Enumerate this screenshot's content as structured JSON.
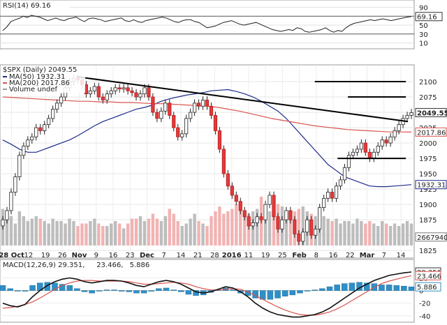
{
  "chart_data": [
    {
      "type": "line",
      "panel": "rsi",
      "title": "RSI(14) 69.16",
      "y_ticks": [
        "90",
        "70",
        "50",
        "30",
        "10"
      ],
      "ylim": [
        0,
        100
      ],
      "last_value": 69.16,
      "last_label": "69.16",
      "series": [
        {
          "name": "RSI(14)",
          "color": "#222222",
          "values": [
            38,
            46,
            58,
            62,
            65,
            70,
            67,
            72,
            70,
            68,
            64,
            60,
            63,
            66,
            62,
            60,
            64,
            66,
            68,
            62,
            58,
            64,
            66,
            64,
            62,
            58,
            60,
            62,
            64,
            66,
            60,
            58,
            62,
            58,
            56,
            60,
            62,
            64,
            66,
            68,
            66,
            62,
            58,
            56,
            60,
            62,
            62,
            58,
            56,
            50,
            44,
            46,
            48,
            52,
            56,
            58,
            60,
            56,
            52,
            50,
            52,
            54,
            56,
            52,
            48,
            44,
            40,
            38,
            36,
            38,
            40,
            38,
            44,
            42,
            36,
            34,
            36,
            38,
            40,
            44,
            38,
            34,
            38,
            36,
            44,
            50,
            54,
            56,
            58,
            60,
            62,
            60,
            62,
            64,
            62,
            60,
            62,
            64,
            66,
            68,
            69.16
          ]
        }
      ]
    },
    {
      "type": "candlestick",
      "panel": "price",
      "title": "$SPX (Daily) 2049.55",
      "legend": [
        {
          "name": "MA(50) 1932.31",
          "color": "#1d2a8a"
        },
        {
          "name": "MA(200) 2017.86",
          "color": "#d9534f"
        },
        {
          "name": "Volume undef",
          "color": "#999999"
        }
      ],
      "y_ticks": [
        "2100",
        "2075",
        "2050",
        "2025",
        "2000",
        "1975",
        "1950",
        "1925",
        "1900",
        "1875",
        "1850",
        "1825"
      ],
      "ylim": [
        1815,
        2125
      ],
      "x_ticks": [
        "28 Oct",
        "12",
        "19",
        "26",
        "Nov",
        "9",
        "16",
        "23",
        "Dec",
        "7",
        "14",
        "21",
        "28",
        "2016",
        "11",
        "19",
        "25",
        "Feb",
        "8",
        "16",
        "22",
        "Mar",
        "7",
        "14"
      ],
      "price_labels": [
        {
          "label": "2049.55",
          "value": 2049.55,
          "style": "bold"
        },
        {
          "label": "2017.86",
          "value": 2017.86,
          "style": "ma200"
        },
        {
          "label": "1932.31",
          "value": 1932.31,
          "style": "ma50"
        },
        {
          "label": "2667940",
          "value": 1847,
          "style": "plain"
        }
      ],
      "close": [
        1875,
        1890,
        1920,
        1945,
        1980,
        1995,
        2005,
        2010,
        2025,
        2020,
        2030,
        2040,
        2055,
        2065,
        2075,
        2090,
        2100,
        2105,
        2103,
        2095,
        2080,
        2085,
        2092,
        2075,
        2070,
        2080,
        2085,
        2090,
        2088,
        2090,
        2085,
        2082,
        2075,
        2080,
        2090,
        2075,
        2050,
        2040,
        2052,
        2065,
        2045,
        2025,
        2010,
        2015,
        2040,
        2050,
        2065,
        2060,
        2070,
        2060,
        2045,
        2020,
        1990,
        1950,
        1930,
        1915,
        1905,
        1890,
        1880,
        1865,
        1870,
        1880,
        1875,
        1900,
        1915,
        1880,
        1860,
        1875,
        1890,
        1875,
        1852,
        1840,
        1855,
        1875,
        1850,
        1860,
        1895,
        1910,
        1920,
        1910,
        1930,
        1940,
        1960,
        1980,
        1985,
        1990,
        2000,
        1985,
        1975,
        1985,
        1995,
        2005,
        2000,
        2010,
        2020,
        2030,
        2040,
        2045,
        2049.55
      ],
      "series": [
        {
          "name": "MA(50)",
          "color": "#1d2a8a",
          "values": [
            2005,
            1998,
            1990,
            1985,
            1985,
            1990,
            1995,
            2000,
            2005,
            2012,
            2020,
            2028,
            2035,
            2040,
            2045,
            2050,
            2055,
            2058,
            2062,
            2068,
            2072,
            2075,
            2078,
            2080,
            2082,
            2085,
            2086,
            2087,
            2084,
            2080,
            2075,
            2068,
            2060,
            2052,
            2040,
            2025,
            2010,
            1995,
            1980,
            1965,
            1955,
            1945,
            1940,
            1935,
            1930,
            1929,
            1929,
            1930,
            1931,
            1932.31
          ]
        },
        {
          "name": "MA(200)",
          "color": "#d9534f",
          "values": [
            2075,
            2074,
            2073,
            2072,
            2071,
            2070,
            2069,
            2068,
            2068,
            2067,
            2067,
            2066,
            2066,
            2065,
            2064,
            2064,
            2063,
            2062,
            2061,
            2060,
            2058,
            2055,
            2052,
            2048,
            2044,
            2040,
            2037,
            2034,
            2031,
            2028,
            2026,
            2024,
            2022,
            2021,
            2020,
            2019,
            2018,
            2018,
            2017.86
          ]
        }
      ],
      "volume_relative": [
        0.75,
        0.55,
        0.6,
        0.45,
        0.7,
        0.6,
        0.5,
        0.55,
        0.6,
        0.55,
        0.5,
        0.45,
        0.55,
        0.5,
        0.5,
        0.45,
        0.55,
        0.5,
        0.4,
        0.45,
        0.45,
        0.5,
        0.55,
        0.45,
        0.4,
        0.4,
        0.45,
        0.5,
        0.45,
        0.35,
        0.45,
        0.55,
        0.55,
        0.6,
        0.5,
        0.55,
        0.65,
        0.55,
        0.5,
        0.6,
        0.75,
        0.65,
        0.5,
        0.4,
        0.45,
        0.55,
        0.65,
        0.5,
        0.45,
        0.4,
        0.6,
        0.7,
        0.8,
        0.65,
        0.7,
        0.75,
        0.85,
        0.8,
        0.6,
        0.65,
        0.7,
        0.75,
        1.0,
        0.65,
        0.7,
        0.75,
        0.85,
        0.8,
        0.6,
        0.65,
        0.7,
        0.75,
        0.8,
        0.7,
        0.65,
        0.6,
        0.55,
        0.6,
        0.55,
        0.5,
        0.55,
        0.45,
        0.5,
        0.5,
        0.45,
        0.55,
        0.5,
        0.45,
        0.5,
        0.45,
        0.4,
        0.5,
        0.45,
        0.4,
        0.45,
        0.4,
        0.45,
        0.5,
        0.45
      ],
      "annotations": [
        {
          "type": "trendline",
          "from": [
            0.185,
            2108
          ],
          "to": [
            0.985,
            2035
          ]
        },
        {
          "type": "level",
          "x_from": 0.76,
          "x_to": 0.98,
          "value": 2100
        },
        {
          "type": "level",
          "x_from": 0.84,
          "x_to": 0.98,
          "value": 2075
        },
        {
          "type": "level",
          "x_from": 0.815,
          "x_to": 0.98,
          "value": 1975
        }
      ]
    },
    {
      "type": "line",
      "panel": "macd",
      "title": "MACD(12,26,9) 29.351, 23.466, 5.886",
      "title_parts": [
        {
          "text": "MACD(12,26,9) 29.351,",
          "color": "#222222"
        },
        {
          "text": "23.466,",
          "color": "#d9534f"
        },
        {
          "text": "5.886",
          "color": "#2f8fc7"
        }
      ],
      "y_ticks": [
        "20",
        "0",
        "-20",
        "-40"
      ],
      "ylim": [
        -48,
        36
      ],
      "price_labels": [
        "29.351",
        "23.466",
        "5.886"
      ],
      "series": [
        {
          "name": "MACD",
          "color": "#111111",
          "values": [
            -20,
            -24,
            -26,
            -22,
            -10,
            0,
            8,
            14,
            18,
            20,
            18,
            14,
            12,
            14,
            16,
            16,
            15,
            12,
            8,
            6,
            10,
            14,
            16,
            14,
            10,
            4,
            -2,
            -4,
            -2,
            2,
            6,
            4,
            -2,
            -10,
            -20,
            -28,
            -34,
            -38,
            -40,
            -42,
            -42,
            -40,
            -38,
            -34,
            -28,
            -20,
            -12,
            -4,
            4,
            10,
            16,
            20,
            24,
            26,
            28,
            29.351
          ]
        },
        {
          "name": "Signal",
          "color": "#d9534f",
          "values": [
            -28,
            -27,
            -25,
            -22,
            -18,
            -12,
            -5,
            2,
            8,
            12,
            15,
            16,
            16,
            15,
            15,
            15,
            15,
            14,
            12,
            10,
            10,
            11,
            12,
            13,
            12,
            10,
            6,
            3,
            1,
            1,
            2,
            3,
            2,
            -2,
            -8,
            -14,
            -20,
            -26,
            -31,
            -35,
            -38,
            -39,
            -39,
            -37,
            -34,
            -29,
            -23,
            -16,
            -9,
            -2,
            5,
            11,
            15,
            18,
            21,
            23.466
          ]
        },
        {
          "name": "Histogram",
          "color": "#2f8fc7",
          "values": [
            8,
            3,
            -1,
            0,
            8,
            12,
            13,
            12,
            10,
            8,
            3,
            -2,
            -4,
            -1,
            1,
            1,
            0,
            -2,
            -4,
            -4,
            0,
            3,
            4,
            1,
            -2,
            -6,
            -8,
            -7,
            -3,
            1,
            4,
            1,
            -4,
            -8,
            -12,
            -14,
            -14,
            -12,
            -9,
            -7,
            -4,
            -1,
            1,
            3,
            6,
            9,
            11,
            12,
            13,
            12,
            11,
            9,
            9,
            8,
            7,
            5.886
          ]
        }
      ]
    }
  ]
}
